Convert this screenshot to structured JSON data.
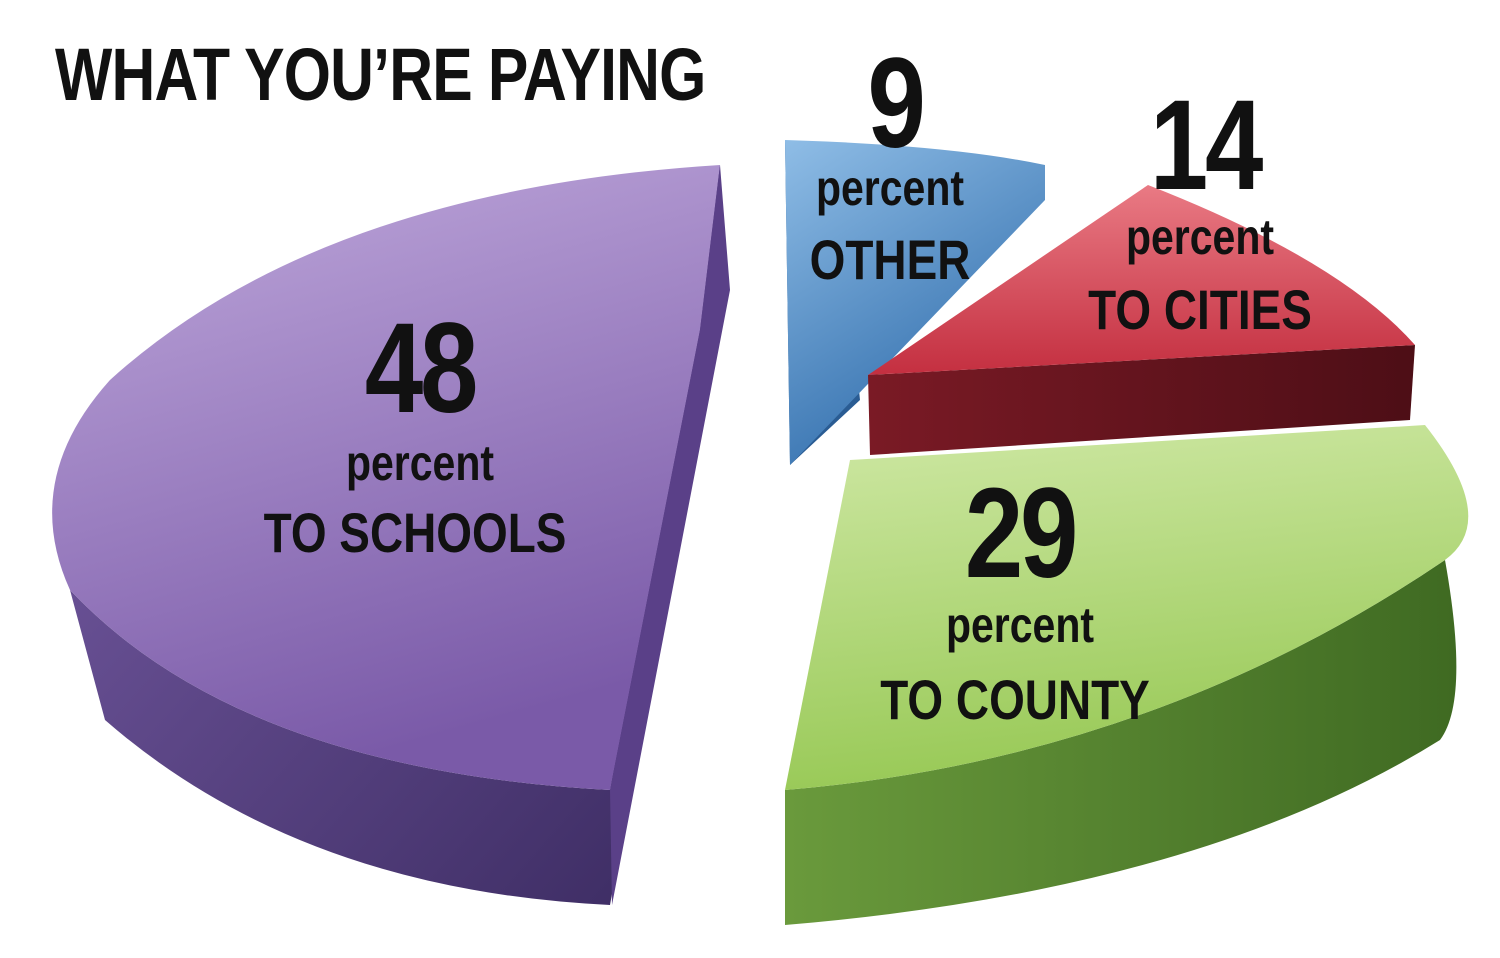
{
  "chart_data": {
    "type": "pie",
    "title": "WHAT YOU’RE PAYING",
    "unit_word": "percent",
    "slices": [
      {
        "value": 48,
        "value_label": "48",
        "label": "TO SCHOOLS",
        "color": "#8a6fb3"
      },
      {
        "value": 9,
        "value_label": "9",
        "label": "OTHER",
        "color": "#4a86c0"
      },
      {
        "value": 14,
        "value_label": "14",
        "label": "TO CITIES",
        "color": "#d64050"
      },
      {
        "value": 29,
        "value_label": "29",
        "label": "TO COUNTY",
        "color": "#a6d266"
      }
    ]
  }
}
